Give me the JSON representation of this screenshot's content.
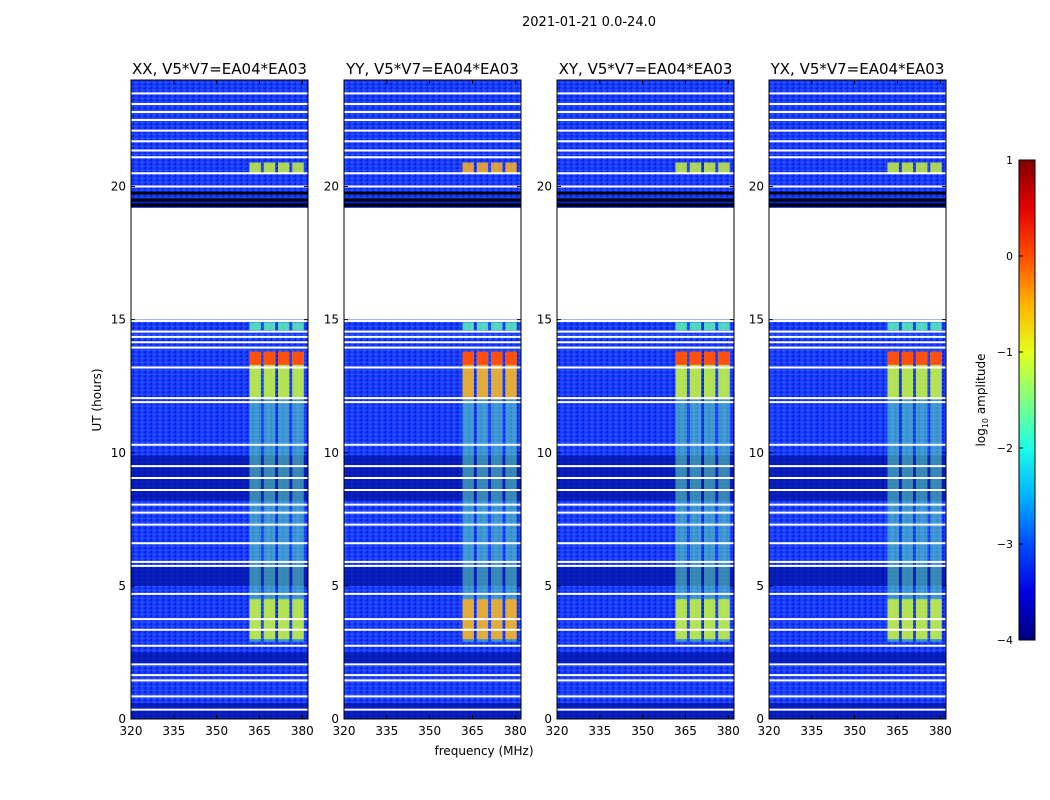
{
  "chart_data": {
    "type": "heatmap",
    "suptitle": "2021-01-21 0.0-24.0",
    "xlabel": "frequency (MHz)",
    "ylabel": "UT (hours)",
    "xlim": [
      320,
      382
    ],
    "ylim": [
      0,
      24
    ],
    "xticks": [
      "320",
      "335",
      "350",
      "365",
      "380"
    ],
    "yticks": [
      "0",
      "5",
      "10",
      "15",
      "20"
    ],
    "colormap": "jet",
    "colorbar": {
      "label": "log10 amplitude",
      "ticks": [
        "1",
        "0",
        "−1",
        "−2",
        "−3",
        "−4"
      ],
      "range": [
        -4,
        1
      ]
    },
    "panels": [
      {
        "title": "XX, V5*V7=EA04*EA03"
      },
      {
        "title": "YY, V5*V7=EA04*EA03"
      },
      {
        "title": "XY, V5*V7=EA04*EA03"
      },
      {
        "title": "YX, V5*V7=EA04*EA03"
      }
    ],
    "no_data_ut_hours": [
      [
        15.0,
        19.2
      ]
    ],
    "rfi_channels_mhz": [
      [
        361.5,
        365.5
      ],
      [
        366.5,
        370.5
      ],
      [
        371.5,
        375.5
      ],
      [
        376.5,
        380.5
      ]
    ],
    "rfi_strong_ut_hours": [
      [
        12.0,
        13.8
      ],
      [
        3.0,
        4.5
      ],
      [
        20.5,
        20.9
      ]
    ]
  }
}
